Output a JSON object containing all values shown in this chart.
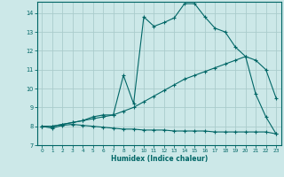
{
  "xlabel": "Humidex (Indice chaleur)",
  "bg_color": "#cce8e8",
  "grid_color": "#aacccc",
  "line_color": "#006666",
  "xlim": [
    -0.5,
    23.5
  ],
  "ylim": [
    7,
    14.6
  ],
  "xticks": [
    0,
    1,
    2,
    3,
    4,
    5,
    6,
    7,
    8,
    9,
    10,
    11,
    12,
    13,
    14,
    15,
    16,
    17,
    18,
    19,
    20,
    21,
    22,
    23
  ],
  "yticks": [
    7,
    8,
    9,
    10,
    11,
    12,
    13,
    14
  ],
  "curve1_x": [
    0,
    1,
    2,
    3,
    4,
    5,
    6,
    7,
    8,
    9,
    10,
    11,
    12,
    13,
    14,
    15,
    16,
    17,
    18,
    19,
    20,
    21,
    22,
    23
  ],
  "curve1_y": [
    8.0,
    7.9,
    8.05,
    8.1,
    8.05,
    8.0,
    7.95,
    7.9,
    7.85,
    7.85,
    7.8,
    7.8,
    7.8,
    7.75,
    7.75,
    7.75,
    7.75,
    7.7,
    7.7,
    7.7,
    7.7,
    7.7,
    7.7,
    7.6
  ],
  "curve2_x": [
    0,
    1,
    2,
    3,
    4,
    5,
    6,
    7,
    8,
    9,
    10,
    11,
    12,
    13,
    14,
    15,
    16,
    17,
    18,
    19,
    20,
    21,
    22,
    23
  ],
  "curve2_y": [
    8.0,
    8.0,
    8.1,
    8.2,
    8.3,
    8.4,
    8.5,
    8.6,
    8.8,
    9.0,
    9.3,
    9.6,
    9.9,
    10.2,
    10.5,
    10.7,
    10.9,
    11.1,
    11.3,
    11.5,
    11.7,
    11.5,
    11.0,
    9.5
  ],
  "curve3_x": [
    0,
    1,
    2,
    3,
    4,
    5,
    6,
    7,
    8,
    9,
    10,
    11,
    12,
    13,
    14,
    15,
    16,
    17,
    18,
    19,
    20,
    21,
    22,
    23
  ],
  "curve3_y": [
    8.0,
    8.0,
    8.1,
    8.2,
    8.3,
    8.5,
    8.6,
    8.6,
    10.7,
    9.2,
    13.8,
    13.3,
    13.5,
    13.75,
    14.5,
    14.5,
    13.8,
    13.2,
    13.0,
    12.2,
    11.7,
    9.7,
    8.5,
    7.6
  ]
}
